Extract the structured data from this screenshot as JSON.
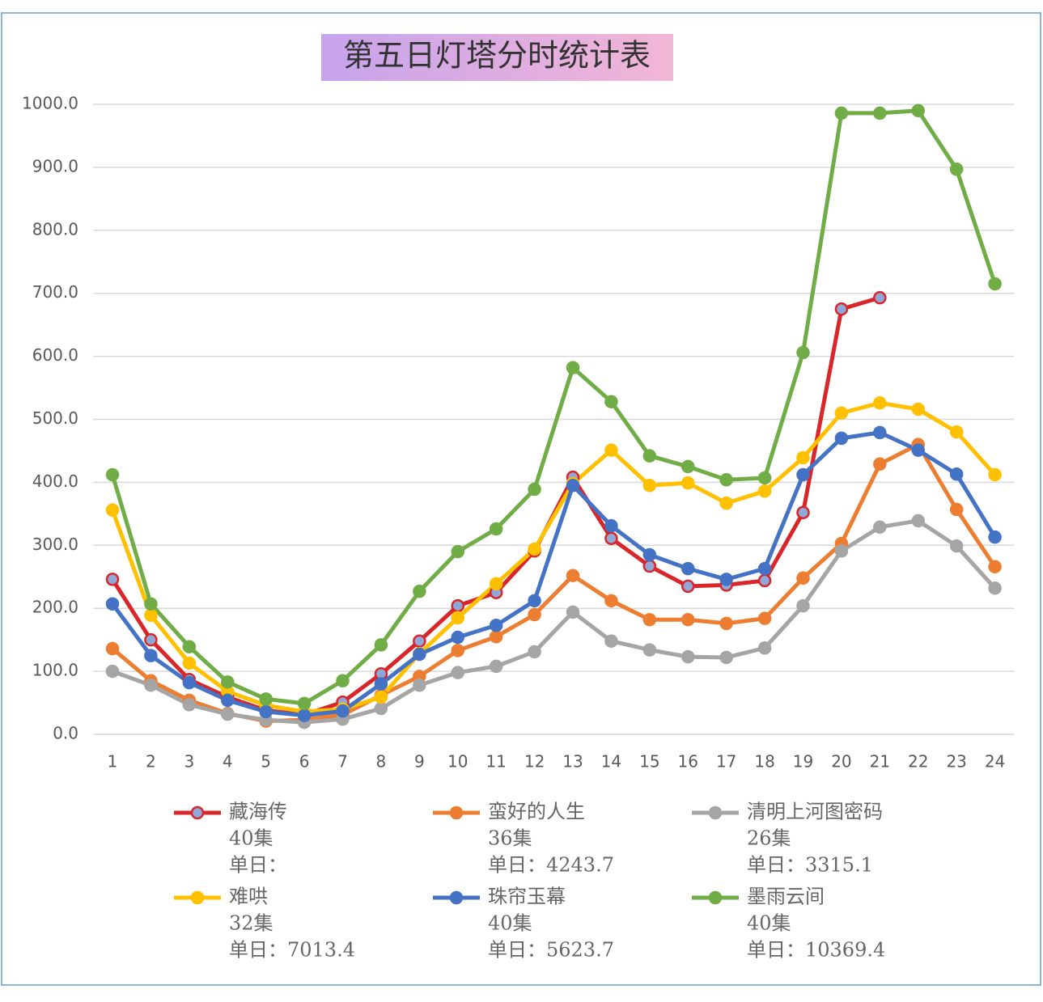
{
  "chart_data": {
    "type": "line",
    "title": "第五日灯塔分时统计表",
    "categories": [
      "1",
      "2",
      "3",
      "4",
      "5",
      "6",
      "7",
      "8",
      "9",
      "10",
      "11",
      "12",
      "13",
      "14",
      "15",
      "16",
      "17",
      "18",
      "19",
      "20",
      "21",
      "22",
      "23",
      "24"
    ],
    "ylim": [
      0,
      1000
    ],
    "yticks": [
      {
        "value": 0,
        "label": "0.0"
      },
      {
        "value": 100,
        "label": "100.0"
      },
      {
        "value": 200,
        "label": "200.0"
      },
      {
        "value": 300,
        "label": "300.0"
      },
      {
        "value": 400,
        "label": "400.0"
      },
      {
        "value": 500,
        "label": "500.0"
      },
      {
        "value": 600,
        "label": "600.0"
      },
      {
        "value": 700,
        "label": "700.0"
      },
      {
        "value": 800,
        "label": "800.0"
      },
      {
        "value": 900,
        "label": "900.0"
      },
      {
        "value": 1000,
        "label": "1000.0"
      }
    ],
    "grid": true,
    "series": [
      {
        "name": "藏海传",
        "color": "#d9262a",
        "marker_fill": "#8fa8d8",
        "legend_lines": [
          "40集",
          "单日："
        ],
        "values": [
          246,
          150,
          87,
          59,
          38,
          31,
          51,
          96,
          148,
          204,
          225,
          291,
          408,
          311,
          267,
          235,
          237,
          244,
          352,
          675,
          693,
          null,
          null,
          null
        ]
      },
      {
        "name": "蛮好的人生",
        "color": "#ed7d31",
        "legend_lines": [
          "36集",
          "单日：4243.7"
        ],
        "values": [
          136,
          85,
          54,
          33,
          21,
          23,
          31,
          62,
          92,
          133,
          155,
          190,
          252,
          212,
          182,
          182,
          176,
          184,
          248,
          303,
          429,
          460,
          357,
          266
        ]
      },
      {
        "name": "清明上河图密码",
        "color": "#a5a5a5",
        "legend_lines": [
          "26集",
          "单日：3315.1"
        ],
        "values": [
          100,
          78,
          47,
          32,
          23,
          19,
          24,
          41,
          78,
          98,
          108,
          131,
          194,
          148,
          134,
          123,
          122,
          137,
          204,
          291,
          329,
          339,
          299,
          232
        ]
      },
      {
        "name": "难哄",
        "color": "#ffc000",
        "legend_lines": [
          "32集",
          "单日：7013.4"
        ],
        "values": [
          356,
          189,
          113,
          68,
          46,
          36,
          40,
          59,
          128,
          185,
          239,
          294,
          398,
          451,
          395,
          399,
          367,
          386,
          439,
          510,
          526,
          516,
          480,
          412
        ]
      },
      {
        "name": "珠帘玉幕",
        "color": "#4472c4",
        "legend_lines": [
          "40集",
          "单日：5623.7"
        ],
        "values": [
          207,
          125,
          82,
          54,
          36,
          30,
          37,
          80,
          127,
          154,
          173,
          212,
          395,
          331,
          285,
          263,
          246,
          263,
          412,
          470,
          479,
          451,
          413,
          313
        ]
      },
      {
        "name": "墨雨云间",
        "color": "#70ad47",
        "legend_lines": [
          "40集",
          "单日：10369.4"
        ],
        "values": [
          412,
          207,
          139,
          83,
          56,
          49,
          85,
          142,
          227,
          290,
          326,
          389,
          582,
          528,
          442,
          425,
          404,
          407,
          606,
          986,
          986,
          990,
          897,
          715
        ]
      }
    ]
  }
}
